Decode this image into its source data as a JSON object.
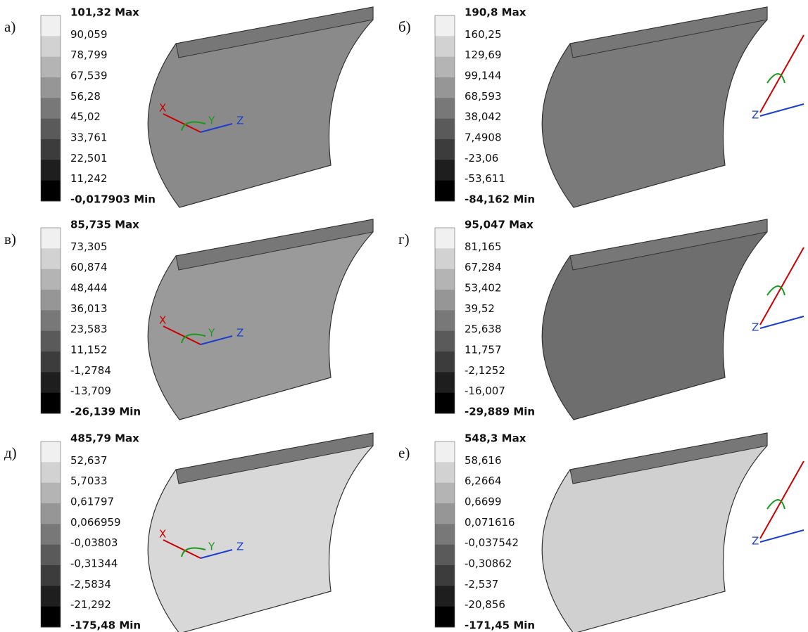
{
  "panels": [
    {
      "label": "а)",
      "max": "101,32 Max",
      "levels": [
        "90,059",
        "78,799",
        "67,539",
        "56,28",
        "45,02",
        "33,761",
        "22,501",
        "11,242"
      ],
      "min": "-0,017903 Min",
      "axes": [
        "X",
        "Y",
        "Z"
      ],
      "surface_color": "#8a8a8a"
    },
    {
      "label": "б)",
      "max": "190,8 Max",
      "levels": [
        "160,25",
        "129,69",
        "99,144",
        "68,593",
        "38,042",
        "7,4908",
        "-23,06",
        "-53,611"
      ],
      "min": "-84,162 Min",
      "axes": [
        "Z"
      ],
      "surface_color": "#7a7a7a"
    },
    {
      "label": "в)",
      "max": "85,735 Max",
      "levels": [
        "73,305",
        "60,874",
        "48,444",
        "36,013",
        "23,583",
        "11,152",
        "-1,2784",
        "-13,709"
      ],
      "min": "-26,139 Min",
      "axes": [
        "X",
        "Y",
        "Z"
      ],
      "surface_color": "#9a9a9a"
    },
    {
      "label": "г)",
      "max": "95,047 Max",
      "levels": [
        "81,165",
        "67,284",
        "53,402",
        "39,52",
        "25,638",
        "11,757",
        "-2,1252",
        "-16,007"
      ],
      "min": "-29,889 Min",
      "axes": [
        "Z"
      ],
      "surface_color": "#6e6e6e"
    },
    {
      "label": "д)",
      "max": "485,79 Max",
      "levels": [
        "52,637",
        "5,7033",
        "0,61797",
        "0,066959",
        "-0,03803",
        "-0,31344",
        "-2,5834",
        "-21,292"
      ],
      "min": "-175,48 Min",
      "axes": [
        "X",
        "Y",
        "Z"
      ],
      "surface_color": "#d8d8d8"
    },
    {
      "label": "е)",
      "max": "548,3 Max",
      "levels": [
        "58,616",
        "6,2664",
        "0,6699",
        "0,071616",
        "-0,037542",
        "-0,30862",
        "-2,537",
        "-20,856"
      ],
      "min": "-171,45 Min",
      "axes": [
        "Z"
      ],
      "surface_color": "#d0d0d0"
    }
  ]
}
